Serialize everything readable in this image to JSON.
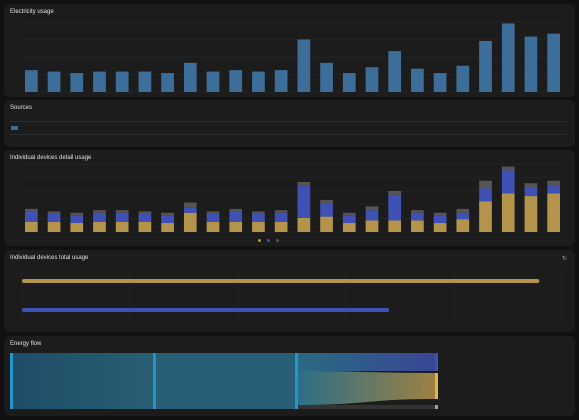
{
  "colors": {
    "grid_power": "#3d6e99",
    "device_consumption": "#b4934a",
    "untracked": "#555555",
    "device_a": "#b4934a",
    "device_b": "#3f51b5",
    "card_bg": "#1c1c1c",
    "page_bg": "#111111"
  },
  "electricity_usage": {
    "title": "Electricity usage",
    "total": "",
    "chart_data": {
      "type": "bar",
      "series": [
        {
          "values": [
            1.5,
            1.4,
            1.3,
            1.4,
            1.4,
            1.4,
            1.3,
            2.0,
            1.4,
            1.5,
            1.4,
            1.5,
            3.6,
            2.0,
            1.3,
            1.7,
            2.8,
            1.6,
            1.3,
            1.8,
            3.5,
            4.7,
            3.8,
            4.0
          ]
        }
      ],
      "ylim": [
        0,
        4.8
      ]
    }
  },
  "sources": {
    "title": "Sources",
    "headers": [
      "",
      "",
      ""
    ],
    "rows": [
      {
        "icon": "grid-power-icon",
        "name": "",
        "usage": "",
        "cost": ""
      }
    ],
    "total": {
      "label": "",
      "usage": "",
      "cost": ""
    }
  },
  "individual_devices_detail_usage": {
    "title": "Individual devices detail usage",
    "legend": [
      {
        "icon": "device-a-legend-icon",
        "label": "",
        "color": "#b4934a"
      },
      {
        "icon": "device-b-legend-icon",
        "label": "",
        "color": "#3f51b5"
      },
      {
        "icon": "untracked-legend-icon",
        "label": "",
        "color": "#555555"
      }
    ],
    "chart_data": {
      "type": "bar",
      "stacked": true,
      "series": [
        {
          "color": "#b4934a",
          "values": [
            0.8,
            0.8,
            0.7,
            0.8,
            0.8,
            0.8,
            0.7,
            1.5,
            0.8,
            0.8,
            0.8,
            0.8,
            1.1,
            1.2,
            0.7,
            0.9,
            0.9,
            0.9,
            0.7,
            1.0,
            2.4,
            3.0,
            2.8,
            3.0
          ]
        },
        {
          "color": "#3f51b5",
          "values": [
            0.8,
            0.6,
            0.6,
            0.7,
            0.7,
            0.6,
            0.6,
            0.4,
            0.6,
            0.8,
            0.6,
            0.7,
            2.5,
            1.0,
            0.6,
            0.8,
            2.0,
            0.6,
            0.6,
            0.5,
            1.0,
            1.8,
            0.7,
            0.6
          ]
        },
        {
          "color": "#555555",
          "values": [
            0.2,
            0.2,
            0.2,
            0.2,
            0.2,
            0.2,
            0.2,
            0.4,
            0.2,
            0.2,
            0.2,
            0.2,
            0.3,
            0.3,
            0.2,
            0.3,
            0.3,
            0.2,
            0.2,
            0.3,
            0.6,
            0.3,
            0.3,
            0.4
          ]
        }
      ],
      "ylim": [
        0,
        5.3
      ]
    }
  },
  "individual_devices_total_usage": {
    "title": "Individual devices total usage",
    "refresh_icon": "refresh-icon",
    "chart_data": {
      "type": "bar",
      "orientation": "horizontal",
      "series": [
        {
          "values": [
            4.79,
            3.4
          ],
          "colors": [
            "#b4934a",
            "#3f51b5"
          ]
        }
      ],
      "xlim": [
        0,
        5
      ]
    }
  },
  "energy_flow": {
    "title": "Energy flow",
    "chart_data": {
      "type": "sankey",
      "node_labels": {
        "source": "",
        "grid": "",
        "home": "",
        "device_b": "",
        "device_a": "",
        "untracked": ""
      }
    }
  }
}
